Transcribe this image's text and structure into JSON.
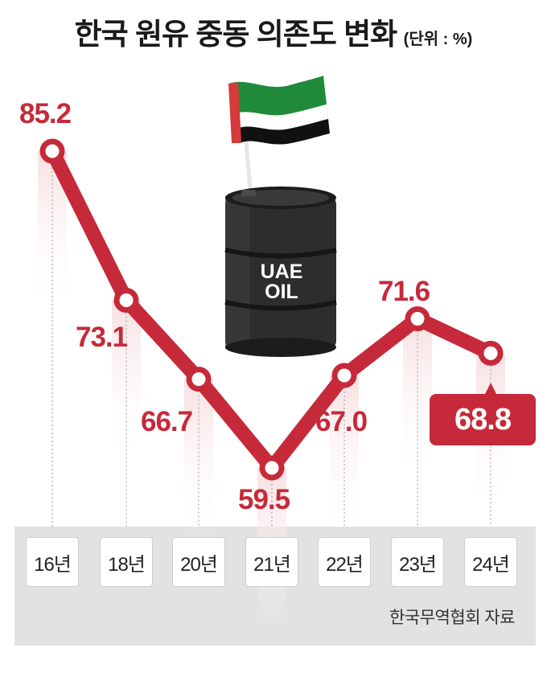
{
  "title": "한국 원유 중동 의존도 변화",
  "unit": "(단위 : %)",
  "source": "한국무역협회 자료",
  "illustration": {
    "barrel_text_line1": "UAE",
    "barrel_text_line2": "OIL",
    "flag": "uae-flag"
  },
  "colors": {
    "line": "#c62a3a",
    "label": "#c62a3a",
    "band": "#e2e2e2"
  },
  "chart_data": {
    "type": "line",
    "title": "한국 원유 중동 의존도 변화",
    "categories": [
      "16년",
      "18년",
      "20년",
      "21년",
      "22년",
      "23년",
      "24년"
    ],
    "values": [
      85.2,
      73.1,
      66.7,
      59.5,
      67.0,
      71.6,
      68.8
    ],
    "value_labels": [
      "85.2",
      "73.1",
      "66.7",
      "59.5",
      "67.0",
      "71.6",
      "68.8"
    ],
    "xlabel": "",
    "ylabel": "",
    "grid": false,
    "legend": "none"
  }
}
